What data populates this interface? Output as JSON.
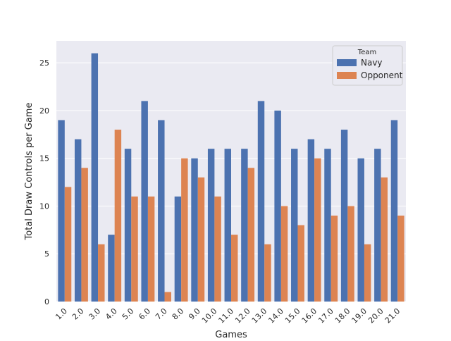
{
  "chart_data": {
    "type": "bar",
    "categories": [
      "1.0",
      "2.0",
      "3.0",
      "4.0",
      "5.0",
      "6.0",
      "7.0",
      "8.0",
      "9.0",
      "10.0",
      "11.0",
      "12.0",
      "13.0",
      "14.0",
      "15.0",
      "16.0",
      "17.0",
      "18.0",
      "19.0",
      "20.0",
      "21.0"
    ],
    "series": [
      {
        "name": "Navy",
        "color": "#4c72b0",
        "values": [
          19,
          17,
          26,
          7,
          16,
          21,
          19,
          11,
          15,
          16,
          16,
          16,
          21,
          20,
          16,
          17,
          16,
          18,
          15,
          16,
          19
        ]
      },
      {
        "name": "Opponent",
        "color": "#dd8452",
        "values": [
          12,
          14,
          6,
          18,
          11,
          11,
          1,
          15,
          13,
          11,
          7,
          14,
          6,
          10,
          8,
          15,
          9,
          10,
          6,
          13,
          9
        ]
      }
    ],
    "title": "",
    "xlabel": "Games",
    "ylabel": "Total Draw Controls per Game",
    "ylim": [
      0,
      27.3
    ],
    "yticks": [
      0,
      5,
      10,
      15,
      20,
      25
    ],
    "grid": true,
    "legend": {
      "title": "Team",
      "placement": "top-right"
    },
    "background": "#eaeaf2",
    "x_tick_rotation": "45"
  }
}
